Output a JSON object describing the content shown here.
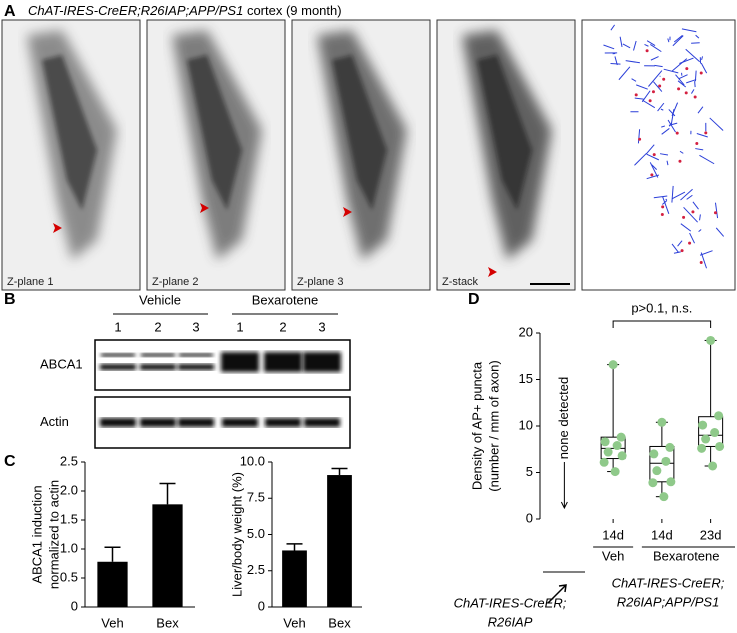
{
  "panel_a": {
    "label": "A",
    "title_italic": "ChAT-IRES-CreER;R26IAP;APP/PS1",
    "title_rest": "cortex (9 month)",
    "planes": [
      "Z-plane 1",
      "Z-plane 2",
      "Z-plane 3",
      "Z-stack"
    ]
  },
  "panel_b": {
    "label": "B",
    "groups": [
      "Vehicle",
      "Bexarotene"
    ],
    "lanes": [
      "1",
      "2",
      "3",
      "1",
      "2",
      "3"
    ],
    "rows": [
      "ABCA1",
      "Actin"
    ]
  },
  "panel_c_label": "C",
  "panel_d_label": "D",
  "chart_data": [
    {
      "type": "bar",
      "y_label": [
        "ABCA1 induction",
        "normalized to actin"
      ],
      "categories": [
        "Veh",
        "Bex"
      ],
      "values": [
        0.78,
        1.77
      ],
      "errors": [
        0.25,
        0.36
      ],
      "color": "#000000",
      "ylim": [
        0,
        2.5
      ],
      "yticks": [
        0,
        0.5,
        {
          "value": 1,
          "label": "1.0"
        },
        1.5,
        {
          "value": 2,
          "label": "2.0"
        },
        2.5
      ]
    },
    {
      "type": "bar",
      "y_label": [
        "Liver/body weight (%)"
      ],
      "categories": [
        "Veh",
        "Bex"
      ],
      "values": [
        3.9,
        9.1
      ],
      "errors": [
        0.45,
        0.45
      ],
      "color": "#000000",
      "ylim": [
        0,
        10
      ],
      "yticks": [
        0,
        2.5,
        {
          "value": 5,
          "label": "5.0"
        },
        7.5,
        {
          "value": 10,
          "label": "10.0"
        }
      ]
    },
    {
      "type": "box",
      "y_label": [
        "Density of AP+ puncta",
        "(number / mm of axon)"
      ],
      "categories": [
        null,
        "14d",
        "14d",
        "23d"
      ],
      "groups": [
        "Veh",
        "Bexarotene"
      ],
      "genotypes": [
        [
          "ChAT-IRES-CreER;",
          "R26IAP"
        ],
        [
          "ChAT-IRES-CreER;",
          "R26IAP;APP/PS1"
        ]
      ],
      "annotation": "p>0.1, n.s.",
      "none_label": "none detected",
      "color": "#8fc98a",
      "boxes": [
        null,
        {
          "min": 5.1,
          "q1": 6.5,
          "median": 7.6,
          "q3": 8.8,
          "max": 16.6,
          "points": [
            16.6,
            8.8,
            8.3,
            7.9,
            7.2,
            6.8,
            6.1,
            5.1
          ]
        },
        {
          "min": 2.4,
          "q1": 4.0,
          "median": 6.0,
          "q3": 7.8,
          "max": 10.4,
          "points": [
            10.4,
            7.7,
            7.0,
            6.2,
            5.2,
            4.0,
            3.9,
            2.4
          ]
        },
        {
          "min": 5.7,
          "q1": 7.8,
          "median": 9.0,
          "q3": 11.0,
          "max": 19.2,
          "points": [
            19.2,
            11.1,
            10.1,
            9.3,
            8.6,
            7.8,
            7.6,
            5.7
          ]
        }
      ],
      "ylim": [
        0,
        20
      ],
      "yticks": [
        0,
        5,
        10,
        15,
        20
      ]
    }
  ]
}
